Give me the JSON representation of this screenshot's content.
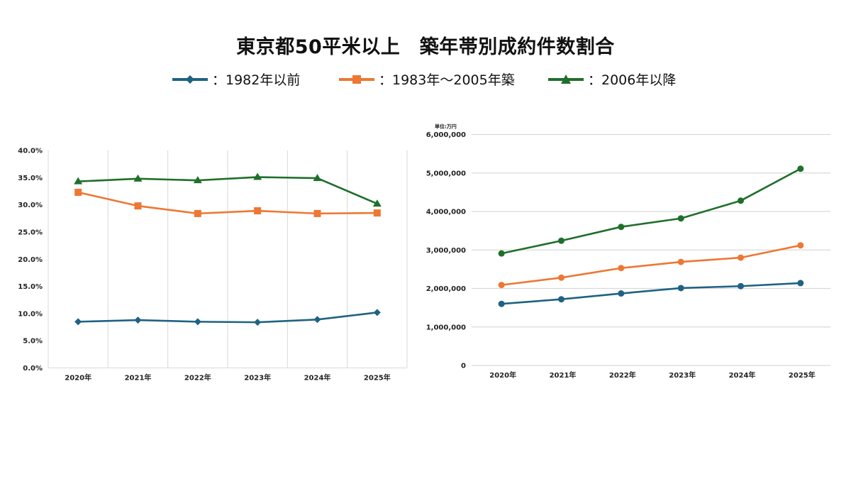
{
  "title": "東京都50平米以上　築年帯別成約件数割合",
  "legend": [
    {
      "label": "：1982年以前",
      "color": "#1f6283",
      "marker": "diamond"
    },
    {
      "label": "：1983年〜2005年築",
      "color": "#ed7733",
      "marker": "square"
    },
    {
      "label": "：2006年以降",
      "color": "#1e6f2a",
      "marker": "triangle"
    }
  ],
  "chart_data": [
    {
      "type": "line",
      "categories": [
        "2020年",
        "2021年",
        "2022年",
        "2023年",
        "2024年",
        "2025年"
      ],
      "ylim": [
        0,
        40
      ],
      "yticks": [
        "0.0%",
        "5.0%",
        "10.0%",
        "15.0%",
        "20.0%",
        "25.0%",
        "30.0%",
        "35.0%",
        "40.0%"
      ],
      "grid": "vertical",
      "series": [
        {
          "name": "：1982年以前",
          "color": "#1f6283",
          "marker": "diamond",
          "values": [
            8.5,
            8.8,
            8.5,
            8.4,
            8.9,
            10.2
          ]
        },
        {
          "name": "：1983年〜2005年築",
          "color": "#ed7733",
          "marker": "square",
          "values": [
            32.3,
            29.8,
            28.4,
            28.9,
            28.4,
            28.5
          ]
        },
        {
          "name": "：2006年以降",
          "color": "#1e6f2a",
          "marker": "triangle",
          "values": [
            34.3,
            34.8,
            34.5,
            35.1,
            34.9,
            30.2
          ]
        }
      ]
    },
    {
      "type": "line",
      "unit_label": "単位:万円",
      "categories": [
        "2020年",
        "2021年",
        "2022年",
        "2023年",
        "2024年",
        "2025年"
      ],
      "ylim": [
        0,
        6000000
      ],
      "yticks": [
        "0",
        "1,000,000",
        "2,000,000",
        "3,000,000",
        "4,000,000",
        "5,000,000",
        "6,000,000"
      ],
      "grid": "horizontal",
      "series": [
        {
          "name": "：1982年以前",
          "color": "#1f6283",
          "marker": "circle",
          "values": [
            1600000,
            1720000,
            1870000,
            2010000,
            2060000,
            2140000
          ]
        },
        {
          "name": "：1983年〜2005年築",
          "color": "#ed7733",
          "marker": "circle",
          "values": [
            2090000,
            2280000,
            2530000,
            2690000,
            2800000,
            3120000
          ]
        },
        {
          "name": "：2006年以降",
          "color": "#1e6f2a",
          "marker": "circle",
          "values": [
            2910000,
            3240000,
            3600000,
            3820000,
            4280000,
            5110000
          ]
        }
      ]
    }
  ]
}
